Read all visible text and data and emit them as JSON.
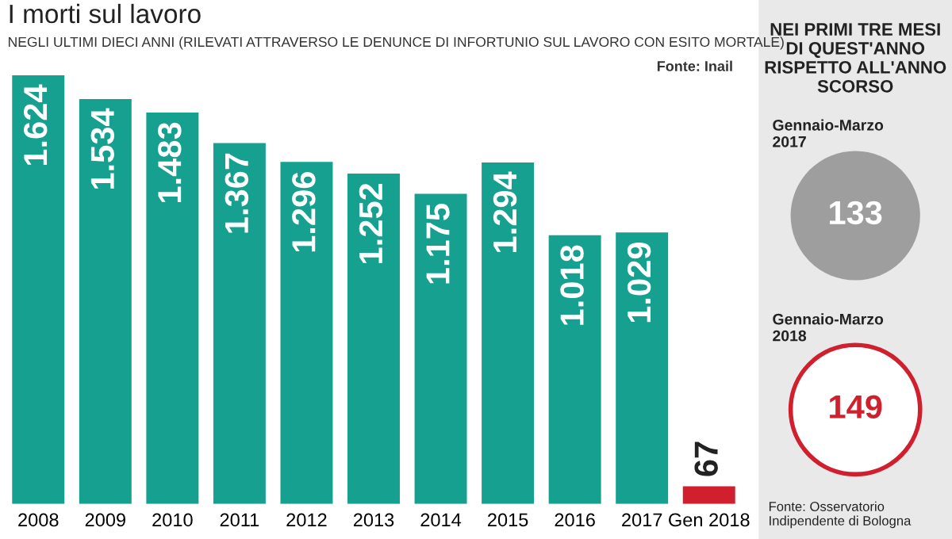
{
  "chart_data": [
    {
      "type": "bar",
      "title": "I morti sul lavoro",
      "subtitle": "NEGLI ULTIMI DIECI ANNI (RILEVATI ATTRAVERSO LE DENUNCE DI INFORTUNIO SUL LAVORO CON ESITO MORTALE)",
      "annotations": [
        "Fonte: Inail"
      ],
      "categories": [
        "2008",
        "2009",
        "2010",
        "2011",
        "2012",
        "2013",
        "2014",
        "2015",
        "2016",
        "2017",
        "Gen 2018"
      ],
      "values": [
        1624,
        1534,
        1483,
        1367,
        1296,
        1252,
        1175,
        1294,
        1018,
        1029,
        67
      ],
      "colors": [
        "#15a08f",
        "#15a08f",
        "#15a08f",
        "#15a08f",
        "#15a08f",
        "#15a08f",
        "#15a08f",
        "#15a08f",
        "#15a08f",
        "#15a08f",
        "#d0202e"
      ],
      "value_labels": [
        "1.624",
        "1.534",
        "1.483",
        "1.367",
        "1.296",
        "1.252",
        "1.175",
        "1.294",
        "1.018",
        "1.029",
        "67"
      ],
      "tick_labels": "x"
    },
    {
      "type": "other",
      "title": "NEI PRIMI TRE MESI DI QUEST'ANNO RISPETTO ALL'ANNO SCORSO",
      "categories": [
        "Gennaio-Marzo\n2017",
        "Gennaio-Marzo\n2018"
      ],
      "values": [
        133,
        149
      ],
      "colors": [
        "#9e9e9e",
        "#d0202e"
      ],
      "value_labels": [
        "133",
        "149"
      ],
      "annotations": [
        "Fonte: Osservatorio Indipendente di Bologna"
      ]
    }
  ]
}
